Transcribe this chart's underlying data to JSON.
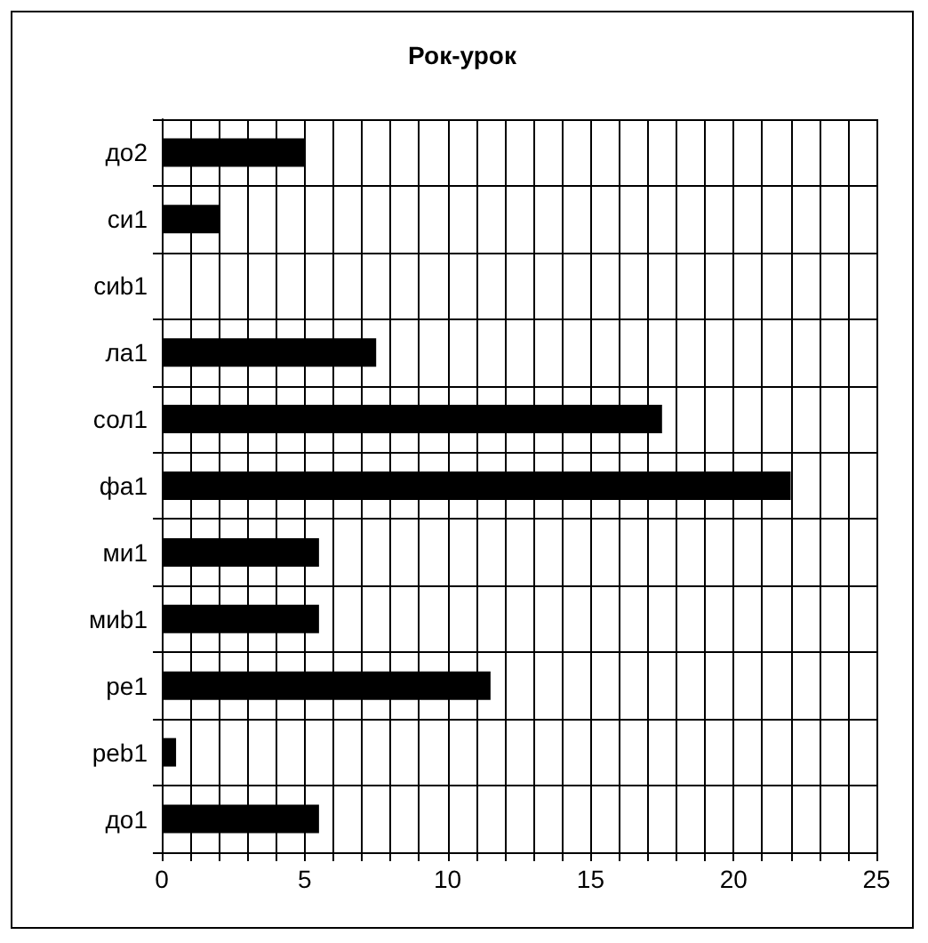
{
  "chart_data": {
    "type": "bar",
    "orientation": "horizontal",
    "title": "Рок-урок",
    "categories": [
      "до2",
      "си1",
      "сиb1",
      "ла1",
      "сол1",
      "фа1",
      "ми1",
      "миb1",
      "ре1",
      "реb1",
      "до1"
    ],
    "values": [
      5,
      2,
      0,
      7.5,
      17.5,
      22,
      5.5,
      5.5,
      11.5,
      0.5,
      5.5
    ],
    "color": "#000000",
    "xlim": [
      0,
      25
    ],
    "xticks": [
      0,
      {
        "value": 1,
        "label": null
      },
      {
        "value": 2,
        "label": null
      },
      {
        "value": 3,
        "label": null
      },
      {
        "value": 4,
        "label": null
      },
      5,
      {
        "value": 6,
        "label": null
      },
      {
        "value": 7,
        "label": null
      },
      {
        "value": 8,
        "label": null
      },
      {
        "value": 9,
        "label": null
      },
      10,
      {
        "value": 11,
        "label": null
      },
      {
        "value": 12,
        "label": null
      },
      {
        "value": 13,
        "label": null
      },
      {
        "value": 14,
        "label": null
      },
      15,
      {
        "value": 16,
        "label": null
      },
      {
        "value": 17,
        "label": null
      },
      {
        "value": 18,
        "label": null
      },
      {
        "value": 19,
        "label": null
      },
      20,
      {
        "value": 21,
        "label": null
      },
      {
        "value": 22,
        "label": null
      },
      {
        "value": 23,
        "label": null
      },
      {
        "value": 24,
        "label": null
      },
      25
    ],
    "grid": true
  }
}
